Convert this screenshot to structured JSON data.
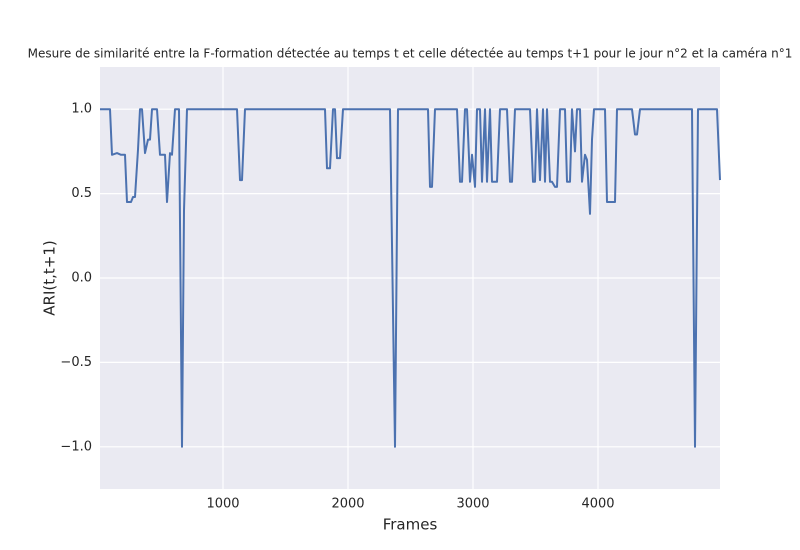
{
  "chart_data": {
    "type": "line",
    "title": "Mesure de similarité entre la F-formation détectée au temps t et celle détectée au temps t+1 pour le jour n°2 et la caméra n°1",
    "xlabel": "Frames",
    "ylabel": "ARI(t,t+1)",
    "x": [
      16,
      96,
      112,
      152,
      184,
      216,
      232,
      264,
      280,
      296,
      320,
      336,
      352,
      376,
      400,
      416,
      432,
      472,
      496,
      536,
      552,
      576,
      592,
      616,
      648,
      672,
      688,
      712,
      1112,
      1136,
      1152,
      1176,
      1816,
      1832,
      1856,
      1880,
      1896,
      1912,
      1936,
      1960,
      2336,
      2376,
      2400,
      2640,
      2656,
      2672,
      2696,
      2872,
      2896,
      2912,
      2936,
      2952,
      2976,
      2992,
      3016,
      3032,
      3056,
      3072,
      3096,
      3112,
      3136,
      3152,
      3192,
      3216,
      3272,
      3296,
      3312,
      3336,
      3456,
      3480,
      3496,
      3512,
      3536,
      3560,
      3576,
      3592,
      3616,
      3632,
      3656,
      3672,
      3696,
      3736,
      3752,
      3776,
      3792,
      3816,
      3832,
      3856,
      3872,
      3896,
      3912,
      3936,
      3952,
      3968,
      4056,
      4072,
      4136,
      4152,
      4272,
      4296,
      4312,
      4336,
      4752,
      4776,
      4800,
      4952,
      4976
    ],
    "series": [
      {
        "name": "ARI",
        "color": "#4c72b0",
        "values": [
          1.0,
          1.0,
          0.73,
          0.74,
          0.73,
          0.73,
          0.45,
          0.45,
          0.48,
          0.48,
          0.76,
          1.0,
          1.0,
          0.74,
          0.82,
          0.82,
          1.0,
          1.0,
          0.73,
          0.73,
          0.45,
          0.74,
          0.73,
          1.0,
          1.0,
          -1.0,
          0.4,
          1.0,
          1.0,
          0.58,
          0.58,
          1.0,
          1.0,
          0.65,
          0.65,
          1.0,
          1.0,
          0.71,
          0.71,
          1.0,
          1.0,
          -1.0,
          1.0,
          1.0,
          0.54,
          0.54,
          1.0,
          1.0,
          0.57,
          0.57,
          1.0,
          1.0,
          0.57,
          0.73,
          0.54,
          1.0,
          1.0,
          0.57,
          1.0,
          0.57,
          1.0,
          0.57,
          0.57,
          1.0,
          1.0,
          0.57,
          0.57,
          1.0,
          1.0,
          0.57,
          0.57,
          1.0,
          0.58,
          1.0,
          0.57,
          1.0,
          0.57,
          0.57,
          0.54,
          0.54,
          1.0,
          1.0,
          0.57,
          0.57,
          1.0,
          0.75,
          1.0,
          1.0,
          0.57,
          0.73,
          0.7,
          0.38,
          0.82,
          1.0,
          1.0,
          0.45,
          0.45,
          1.0,
          1.0,
          0.85,
          0.85,
          1.0,
          1.0,
          -1.0,
          1.0,
          1.0,
          0.58
        ]
      }
    ],
    "xlim": [
      16,
      4976
    ],
    "ylim": [
      -1.25,
      1.25
    ],
    "xticks": [
      1000,
      2000,
      3000,
      4000
    ],
    "yticks": [
      {
        "value": -1.0,
        "label": "−1.0"
      },
      {
        "value": -0.5,
        "label": "−0.5"
      },
      {
        "value": 0,
        "label": "0.0"
      },
      0.5,
      {
        "value": 1.0,
        "label": "1.0"
      }
    ],
    "grid": true
  }
}
